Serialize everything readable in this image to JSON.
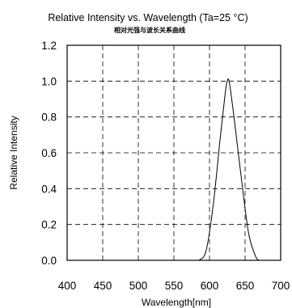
{
  "chart_data": {
    "type": "line",
    "title": "Relative Intensity vs. Wavelength (Ta=25 °C)",
    "subtitle": "相对光强与波长关系曲线",
    "xlabel": "Wavelength[nm]",
    "ylabel": "Relative Intensity",
    "xlim": [
      400,
      700
    ],
    "ylim": [
      0,
      1.2
    ],
    "x_ticks": [
      "400",
      "450",
      "500",
      "550",
      "600",
      "650",
      "700"
    ],
    "y_ticks": [
      "0.0",
      "0.2",
      "0.4",
      "0.6",
      "0.8",
      "1.0",
      "1.2"
    ],
    "grid": true,
    "grid_style": "dashed",
    "series": [
      {
        "x": [
          585,
          595,
          605,
          615,
          622,
          625,
          628,
          635,
          645,
          655,
          665,
          670
        ],
        "y": [
          0.0,
          0.05,
          0.3,
          0.68,
          0.93,
          1.0,
          0.99,
          0.78,
          0.45,
          0.15,
          0.02,
          0.0
        ]
      }
    ]
  }
}
